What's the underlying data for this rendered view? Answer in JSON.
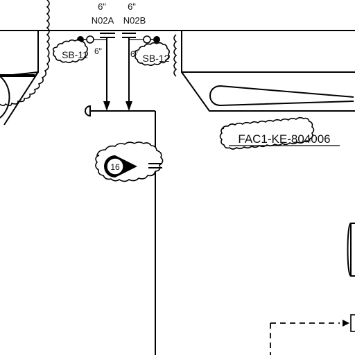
{
  "nozzles": {
    "left": {
      "size": "6\"",
      "tag": "N02A",
      "side_size": "6\""
    },
    "right": {
      "size": "6\"",
      "tag": "N02B",
      "side_size": "6\""
    }
  },
  "clouds": {
    "left": "SB-11",
    "right": "SB-12",
    "revision": "16"
  },
  "equipment": {
    "tag": "FAC1-KE-804006"
  },
  "colors": {
    "line": "#000000",
    "background": "#ffffff"
  }
}
